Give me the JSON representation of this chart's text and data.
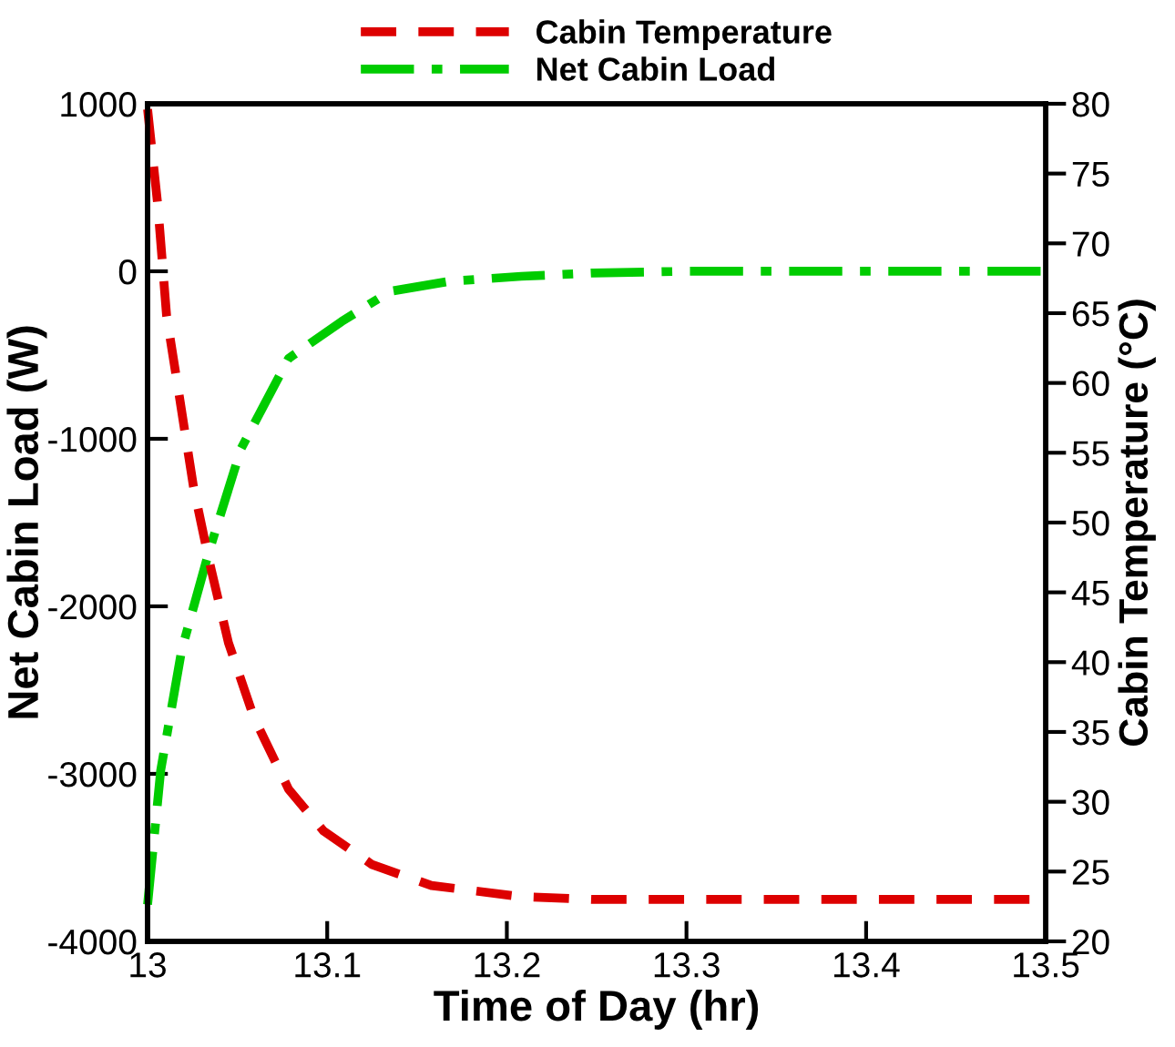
{
  "chart_data": {
    "type": "line",
    "xlabel": "Time of Day (hr)",
    "ylabel": "Net Cabin Load (W)",
    "y2label": "Cabin Temperature (°C)",
    "xlim": [
      13,
      13.5
    ],
    "xticks": [
      13,
      13.1,
      13.2,
      13.3,
      13.4,
      13.5
    ],
    "ylim": [
      -4000,
      1000
    ],
    "yticks": [
      -4000,
      -3000,
      -2000,
      -1000,
      0,
      1000
    ],
    "y2lim": [
      20,
      80
    ],
    "y2ticks": [
      20,
      25,
      30,
      35,
      40,
      45,
      50,
      55,
      60,
      65,
      70,
      75,
      80
    ],
    "legend": "top",
    "grid": false,
    "series": [
      {
        "name": "Cabin Temperature",
        "color": "#dd0000",
        "axis": "y2",
        "line_style": "dashed",
        "x": [
          13.0,
          13.0057,
          13.0106,
          13.017,
          13.0255,
          13.034,
          13.045,
          13.059,
          13.0785,
          13.098,
          13.125,
          13.158,
          13.208,
          13.248,
          13.3,
          13.4,
          13.5
        ],
        "values": [
          79.6,
          72.7,
          64.8,
          59.6,
          52.6,
          47.4,
          41.4,
          36.1,
          30.9,
          27.9,
          25.5,
          24.0,
          23.2,
          23.0,
          23.0,
          23.0,
          23.0
        ]
      },
      {
        "name": "Net Cabin Load",
        "color": "#00cc00",
        "axis": "y",
        "line_style": "dashdot",
        "x": [
          13.0,
          13.0073,
          13.019,
          13.034,
          13.052,
          13.0785,
          13.108,
          13.135,
          13.168,
          13.208,
          13.248,
          13.3,
          13.4,
          13.5
        ],
        "values": [
          -3780,
          -2980,
          -2260,
          -1680,
          -1060,
          -520,
          -300,
          -120,
          -60,
          -30,
          -10,
          0,
          0,
          0
        ]
      }
    ]
  }
}
